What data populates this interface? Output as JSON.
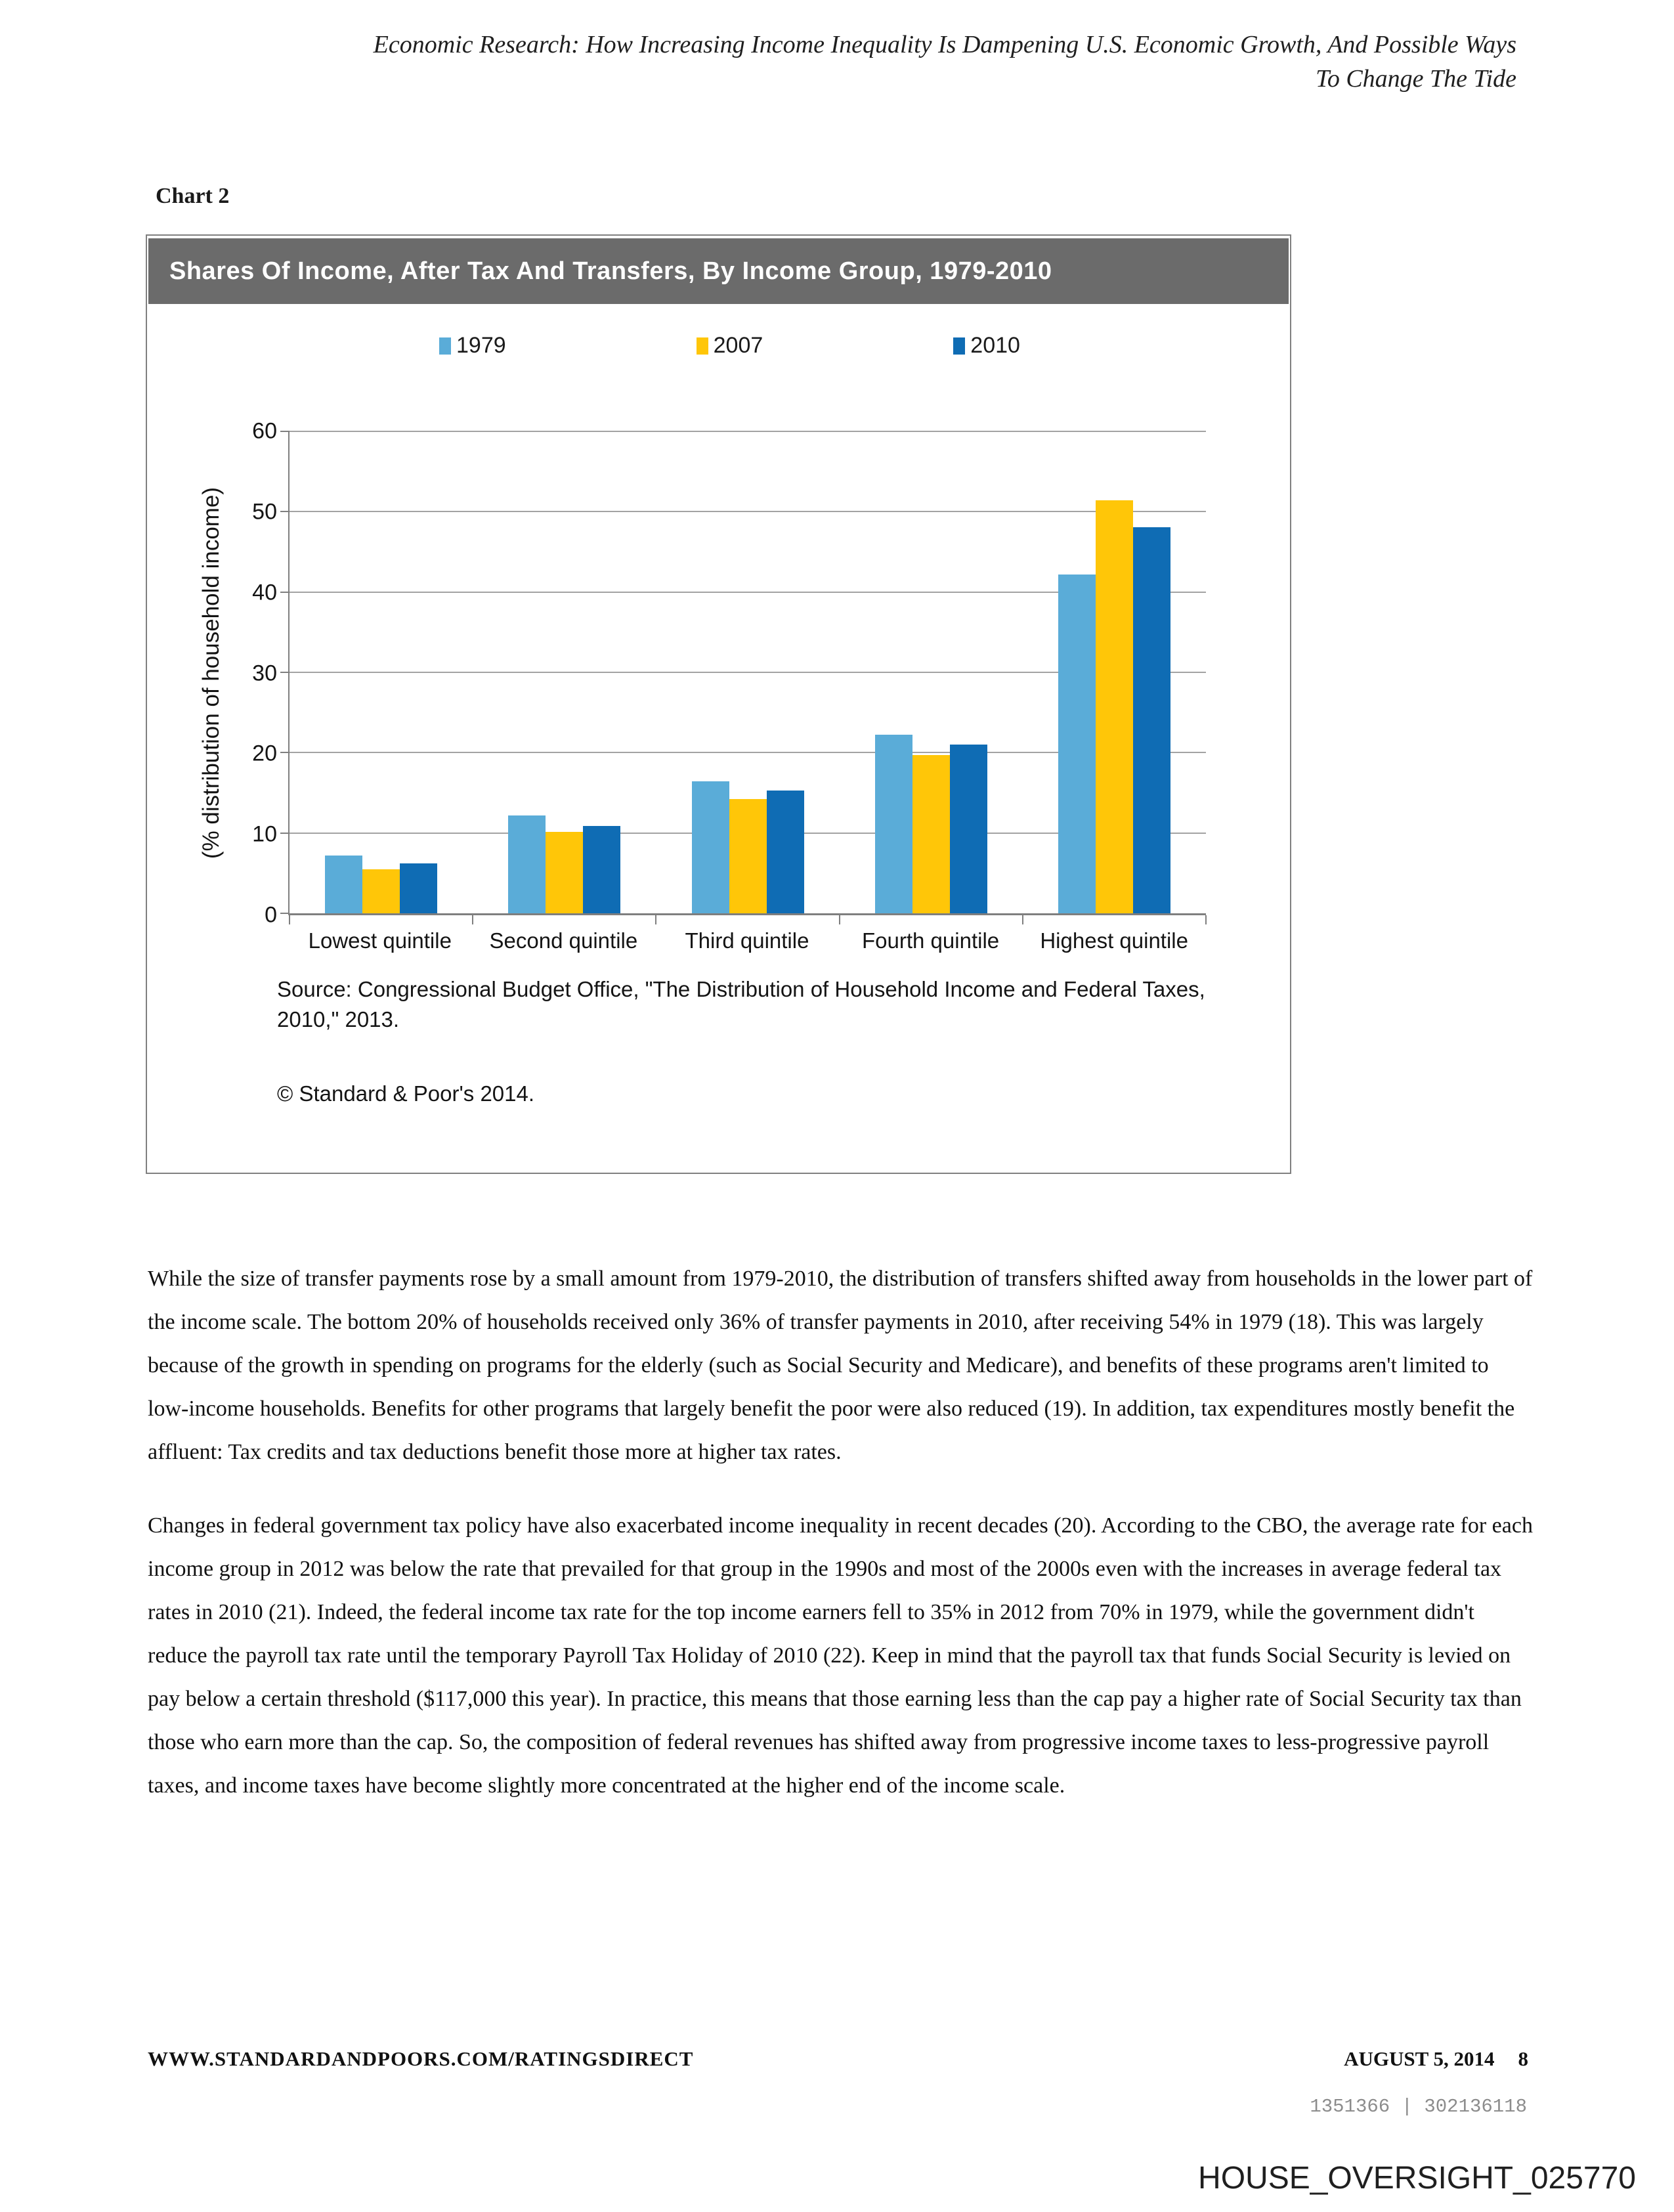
{
  "page": {
    "header_lines": [
      "Economic Research: How Increasing Income Inequality Is Dampening U.S. Economic Growth, And Possible Ways",
      "To Change The Tide"
    ],
    "chart_label": "Chart 2"
  },
  "chart": {
    "source": "Source: Congressional Budget Office, \"The Distribution of Household Income and Federal Taxes, 2010,\" 2013.",
    "copyright": "© Standard & Poor's 2014.",
    "titlebar_color": "#6B6B6B",
    "border_color": "#808080",
    "gridline_color": "#A3A3A3"
  },
  "chart_data": {
    "type": "bar",
    "title": "Shares Of Income, After Tax And Transfers, By Income Group, 1979-2010",
    "ylabel": "(% distribution of household income)",
    "xlabel": "",
    "categories": [
      "Lowest quintile",
      "Second quintile",
      "Third quintile",
      "Fourth quintile",
      "Highest quintile"
    ],
    "series": [
      {
        "name": "1979",
        "color": "#5AACD8",
        "values": [
          7.2,
          12.2,
          16.4,
          22.2,
          42.2
        ]
      },
      {
        "name": "2007",
        "color": "#FFC608",
        "values": [
          5.5,
          10.1,
          14.2,
          19.7,
          51.4
        ]
      },
      {
        "name": "2010",
        "color": "#0F6CB4",
        "values": [
          6.2,
          10.9,
          15.3,
          21.0,
          48.1
        ]
      }
    ],
    "ylim": [
      0,
      60
    ],
    "ytick_step": 10,
    "grid": true,
    "legend_position": "top"
  },
  "body": {
    "paragraphs": [
      "While the size of transfer payments rose by a small amount from 1979-2010, the distribution of transfers shifted away from households in the lower part of the income scale. The bottom 20% of households received only 36% of transfer payments in 2010, after receiving 54% in 1979 (18). This was largely because of the growth in spending on programs for the elderly (such as Social Security and Medicare), and benefits of these programs aren't limited to low-income households. Benefits for other programs that largely benefit the poor were also reduced (19). In addition, tax expenditures mostly benefit the affluent: Tax credits and tax deductions benefit those more at higher tax rates.",
      "Changes in federal government tax policy have also exacerbated income inequality in recent decades (20). According to the CBO, the average rate for each income group in 2012 was below the rate that prevailed for that group in the 1990s and most of the 2000s even with the increases in average federal tax rates in 2010 (21). Indeed, the federal income tax rate for the top income earners fell to 35% in 2012 from 70% in 1979, while the government didn't reduce the payroll tax rate until the temporary Payroll Tax Holiday of 2010 (22). Keep in mind that the payroll tax that funds Social Security is levied on pay below a certain threshold ($117,000 this year). In practice, this means that those earning less than the cap pay a higher rate of Social Security tax than those who earn more than the cap. So, the composition of federal revenues has shifted away from progressive income taxes to less-progressive payroll taxes, and income taxes have become slightly more concentrated at the higher end of the income scale."
    ]
  },
  "footer": {
    "url": "WWW.STANDARDANDPOORS.COM/RATINGSDIRECT",
    "date": "AUGUST 5, 2014",
    "page_number": "8",
    "doc_id": "1351366 | 302136118"
  },
  "watermark": "HOUSE_OVERSIGHT_025770"
}
